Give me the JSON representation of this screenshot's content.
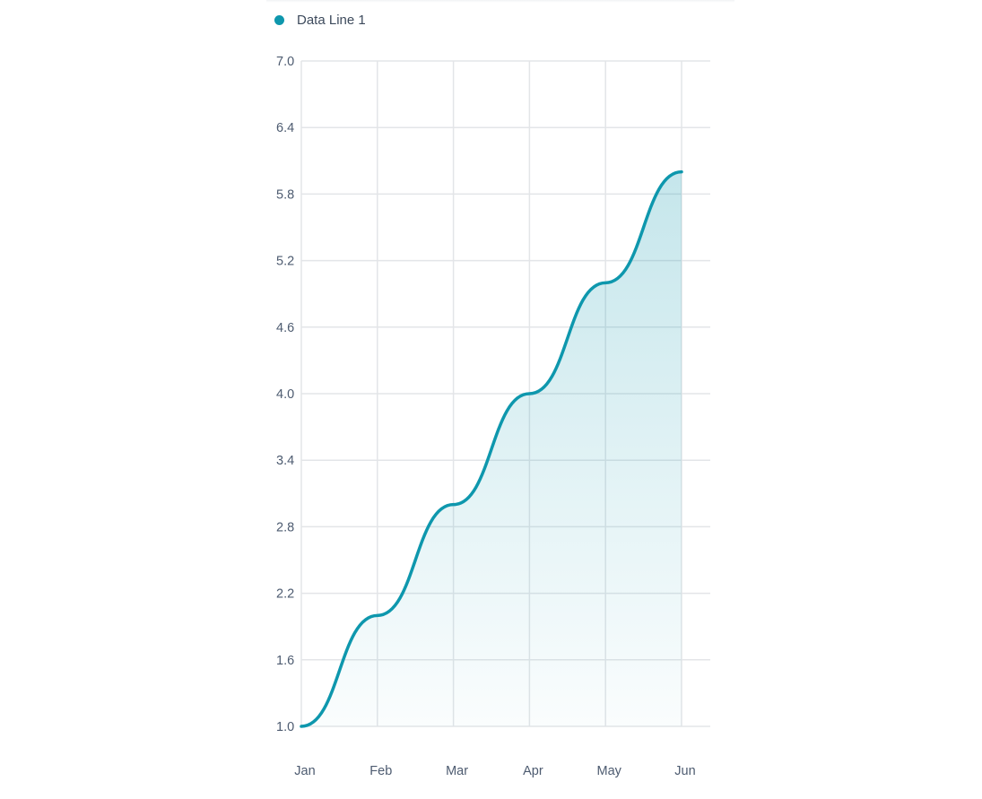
{
  "legend": {
    "label": "Data Line 1"
  },
  "colors": {
    "line": "#0e97ad",
    "grid": "#e3e5e8",
    "tick_text": "#4d5b70",
    "legend_text": "#3d4a5c"
  },
  "chart_data": {
    "type": "area",
    "title": "",
    "xlabel": "",
    "ylabel": "",
    "categories": [
      "Jan",
      "Feb",
      "Mar",
      "Apr",
      "May",
      "Jun"
    ],
    "series": [
      {
        "name": "Data Line 1",
        "values": [
          1,
          2,
          3,
          4,
          5,
          6
        ],
        "color": "#0e97ad"
      }
    ],
    "ylim": [
      1.0,
      7.0
    ],
    "yticks": [
      "1.0",
      "1.6",
      "2.2",
      "2.8",
      "3.4",
      "4.0",
      "4.6",
      "5.2",
      "5.8",
      "6.4",
      "7.0"
    ],
    "grid": true,
    "legend_position": "top-left",
    "curve": "smooth"
  }
}
